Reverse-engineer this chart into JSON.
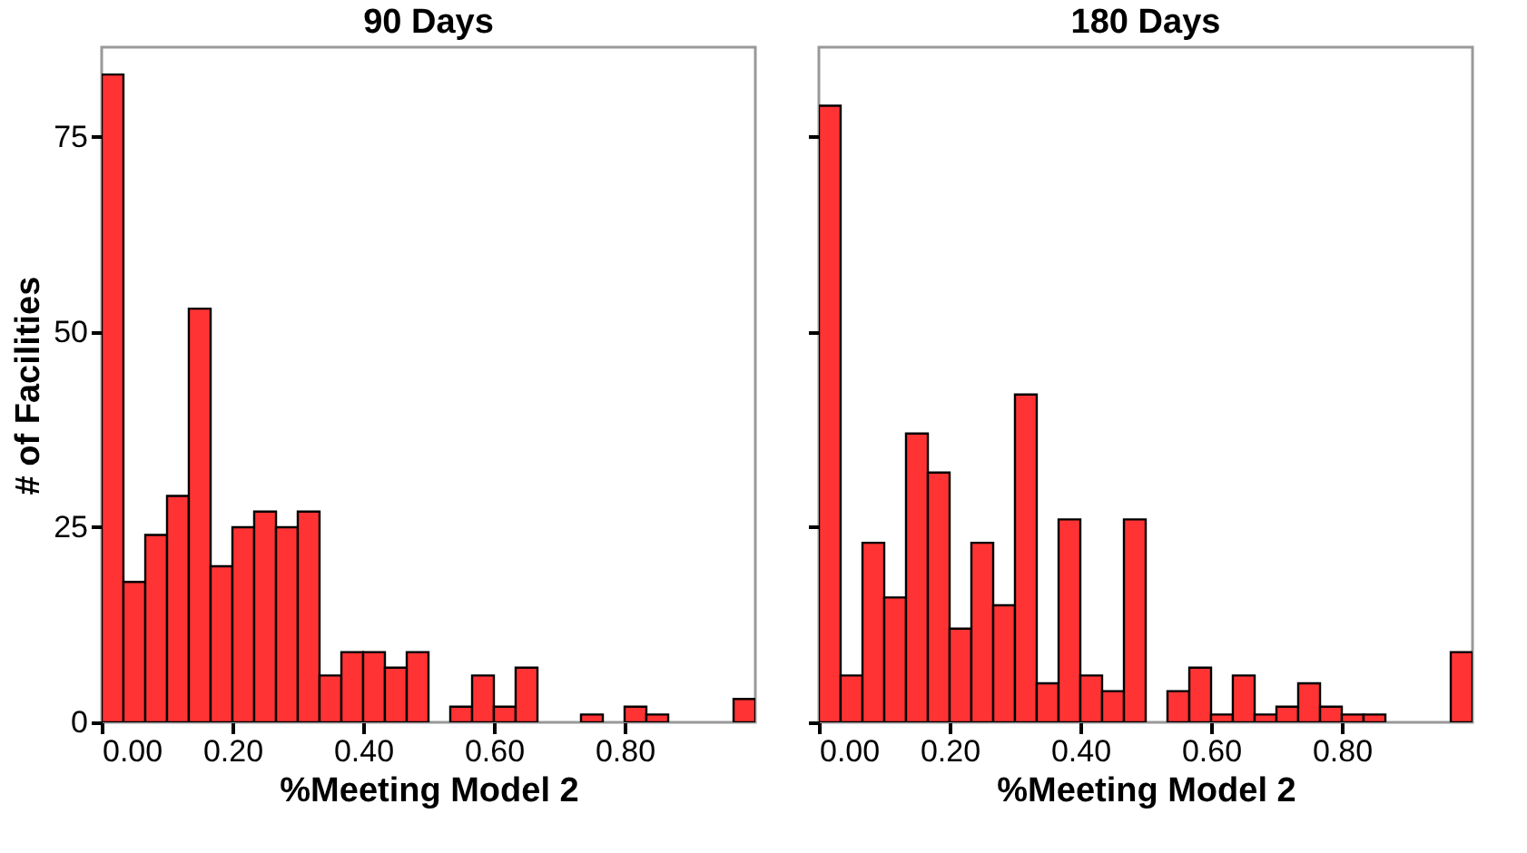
{
  "chart_data": [
    {
      "type": "histogram",
      "title": "90 Days",
      "xlabel": "%Meeting Model 2",
      "ylabel": "# of Facilities",
      "color": "#ff3333",
      "bins": [
        0,
        0.0333,
        0.0667,
        0.1,
        0.1333,
        0.1667,
        0.2,
        0.2333,
        0.2667,
        0.3,
        0.3333,
        0.3667,
        0.4,
        0.4333,
        0.4667,
        0.5,
        0.5333,
        0.5667,
        0.6,
        0.6333,
        0.6667,
        0.7,
        0.7333,
        0.7667,
        0.8,
        0.8333,
        0.8667,
        0.9,
        0.9333,
        0.9667,
        1
      ],
      "values": [
        83,
        18,
        24,
        29,
        53,
        20,
        25,
        27,
        25,
        27,
        6,
        9,
        9,
        7,
        9,
        0,
        2,
        6,
        2,
        7,
        0,
        0,
        1,
        0,
        2,
        1,
        0,
        0,
        0,
        3
      ],
      "xlim": [
        0,
        1
      ],
      "xticks": [
        {
          "value": 0,
          "label": "0.00"
        },
        {
          "value": 0.2,
          "label": "0.20"
        },
        {
          "value": 0.4,
          "label": "0.40"
        },
        {
          "value": 0.6,
          "label": "0.60"
        },
        {
          "value": 0.8,
          "label": "0.80"
        }
      ],
      "ylim": [
        0,
        86.5
      ],
      "yticks": [
        0,
        25,
        50,
        75
      ],
      "grid": false
    },
    {
      "type": "histogram",
      "title": "180 Days",
      "xlabel": "%Meeting Model 2",
      "color": "#ff3333",
      "bins": [
        0,
        0.0333,
        0.0667,
        0.1,
        0.1333,
        0.1667,
        0.2,
        0.2333,
        0.2667,
        0.3,
        0.3333,
        0.3667,
        0.4,
        0.4333,
        0.4667,
        0.5,
        0.5333,
        0.5667,
        0.6,
        0.6333,
        0.6667,
        0.7,
        0.7333,
        0.7667,
        0.8,
        0.8333,
        0.8667,
        0.9,
        0.9333,
        0.9667,
        1
      ],
      "values": [
        79,
        6,
        23,
        16,
        37,
        32,
        12,
        23,
        15,
        42,
        5,
        26,
        6,
        4,
        26,
        0,
        4,
        7,
        1,
        6,
        1,
        2,
        5,
        2,
        1,
        1,
        0,
        0,
        0,
        9
      ],
      "xlim": [
        0,
        1
      ],
      "xticks": [
        {
          "value": 0,
          "label": "0.00"
        },
        {
          "value": 0.2,
          "label": "0.20"
        },
        {
          "value": 0.4,
          "label": "0.40"
        },
        {
          "value": 0.6,
          "label": "0.60"
        },
        {
          "value": 0.8,
          "label": "0.80"
        }
      ],
      "ylim": [
        0,
        86.5
      ],
      "yticks": [
        0,
        25,
        50,
        75
      ],
      "tick_labels": "x",
      "grid": false
    }
  ]
}
